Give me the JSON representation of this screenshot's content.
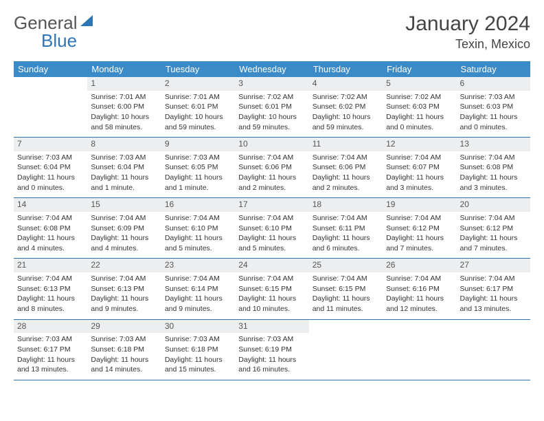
{
  "logo": {
    "text1": "General",
    "text2": "Blue"
  },
  "title": "January 2024",
  "subtitle": "Texin, Mexico",
  "colors": {
    "header_bg": "#3b8bc8",
    "week_border": "#2e75b6",
    "datebar_bg": "#eceef0"
  },
  "daynames": [
    "Sunday",
    "Monday",
    "Tuesday",
    "Wednesday",
    "Thursday",
    "Friday",
    "Saturday"
  ],
  "weeks": [
    [
      {
        "date": ""
      },
      {
        "date": "1",
        "sunrise": "Sunrise: 7:01 AM",
        "sunset": "Sunset: 6:00 PM",
        "daylight1": "Daylight: 10 hours",
        "daylight2": "and 58 minutes."
      },
      {
        "date": "2",
        "sunrise": "Sunrise: 7:01 AM",
        "sunset": "Sunset: 6:01 PM",
        "daylight1": "Daylight: 10 hours",
        "daylight2": "and 59 minutes."
      },
      {
        "date": "3",
        "sunrise": "Sunrise: 7:02 AM",
        "sunset": "Sunset: 6:01 PM",
        "daylight1": "Daylight: 10 hours",
        "daylight2": "and 59 minutes."
      },
      {
        "date": "4",
        "sunrise": "Sunrise: 7:02 AM",
        "sunset": "Sunset: 6:02 PM",
        "daylight1": "Daylight: 10 hours",
        "daylight2": "and 59 minutes."
      },
      {
        "date": "5",
        "sunrise": "Sunrise: 7:02 AM",
        "sunset": "Sunset: 6:03 PM",
        "daylight1": "Daylight: 11 hours",
        "daylight2": "and 0 minutes."
      },
      {
        "date": "6",
        "sunrise": "Sunrise: 7:03 AM",
        "sunset": "Sunset: 6:03 PM",
        "daylight1": "Daylight: 11 hours",
        "daylight2": "and 0 minutes."
      }
    ],
    [
      {
        "date": "7",
        "sunrise": "Sunrise: 7:03 AM",
        "sunset": "Sunset: 6:04 PM",
        "daylight1": "Daylight: 11 hours",
        "daylight2": "and 0 minutes."
      },
      {
        "date": "8",
        "sunrise": "Sunrise: 7:03 AM",
        "sunset": "Sunset: 6:04 PM",
        "daylight1": "Daylight: 11 hours",
        "daylight2": "and 1 minute."
      },
      {
        "date": "9",
        "sunrise": "Sunrise: 7:03 AM",
        "sunset": "Sunset: 6:05 PM",
        "daylight1": "Daylight: 11 hours",
        "daylight2": "and 1 minute."
      },
      {
        "date": "10",
        "sunrise": "Sunrise: 7:04 AM",
        "sunset": "Sunset: 6:06 PM",
        "daylight1": "Daylight: 11 hours",
        "daylight2": "and 2 minutes."
      },
      {
        "date": "11",
        "sunrise": "Sunrise: 7:04 AM",
        "sunset": "Sunset: 6:06 PM",
        "daylight1": "Daylight: 11 hours",
        "daylight2": "and 2 minutes."
      },
      {
        "date": "12",
        "sunrise": "Sunrise: 7:04 AM",
        "sunset": "Sunset: 6:07 PM",
        "daylight1": "Daylight: 11 hours",
        "daylight2": "and 3 minutes."
      },
      {
        "date": "13",
        "sunrise": "Sunrise: 7:04 AM",
        "sunset": "Sunset: 6:08 PM",
        "daylight1": "Daylight: 11 hours",
        "daylight2": "and 3 minutes."
      }
    ],
    [
      {
        "date": "14",
        "sunrise": "Sunrise: 7:04 AM",
        "sunset": "Sunset: 6:08 PM",
        "daylight1": "Daylight: 11 hours",
        "daylight2": "and 4 minutes."
      },
      {
        "date": "15",
        "sunrise": "Sunrise: 7:04 AM",
        "sunset": "Sunset: 6:09 PM",
        "daylight1": "Daylight: 11 hours",
        "daylight2": "and 4 minutes."
      },
      {
        "date": "16",
        "sunrise": "Sunrise: 7:04 AM",
        "sunset": "Sunset: 6:10 PM",
        "daylight1": "Daylight: 11 hours",
        "daylight2": "and 5 minutes."
      },
      {
        "date": "17",
        "sunrise": "Sunrise: 7:04 AM",
        "sunset": "Sunset: 6:10 PM",
        "daylight1": "Daylight: 11 hours",
        "daylight2": "and 5 minutes."
      },
      {
        "date": "18",
        "sunrise": "Sunrise: 7:04 AM",
        "sunset": "Sunset: 6:11 PM",
        "daylight1": "Daylight: 11 hours",
        "daylight2": "and 6 minutes."
      },
      {
        "date": "19",
        "sunrise": "Sunrise: 7:04 AM",
        "sunset": "Sunset: 6:12 PM",
        "daylight1": "Daylight: 11 hours",
        "daylight2": "and 7 minutes."
      },
      {
        "date": "20",
        "sunrise": "Sunrise: 7:04 AM",
        "sunset": "Sunset: 6:12 PM",
        "daylight1": "Daylight: 11 hours",
        "daylight2": "and 7 minutes."
      }
    ],
    [
      {
        "date": "21",
        "sunrise": "Sunrise: 7:04 AM",
        "sunset": "Sunset: 6:13 PM",
        "daylight1": "Daylight: 11 hours",
        "daylight2": "and 8 minutes."
      },
      {
        "date": "22",
        "sunrise": "Sunrise: 7:04 AM",
        "sunset": "Sunset: 6:13 PM",
        "daylight1": "Daylight: 11 hours",
        "daylight2": "and 9 minutes."
      },
      {
        "date": "23",
        "sunrise": "Sunrise: 7:04 AM",
        "sunset": "Sunset: 6:14 PM",
        "daylight1": "Daylight: 11 hours",
        "daylight2": "and 9 minutes."
      },
      {
        "date": "24",
        "sunrise": "Sunrise: 7:04 AM",
        "sunset": "Sunset: 6:15 PM",
        "daylight1": "Daylight: 11 hours",
        "daylight2": "and 10 minutes."
      },
      {
        "date": "25",
        "sunrise": "Sunrise: 7:04 AM",
        "sunset": "Sunset: 6:15 PM",
        "daylight1": "Daylight: 11 hours",
        "daylight2": "and 11 minutes."
      },
      {
        "date": "26",
        "sunrise": "Sunrise: 7:04 AM",
        "sunset": "Sunset: 6:16 PM",
        "daylight1": "Daylight: 11 hours",
        "daylight2": "and 12 minutes."
      },
      {
        "date": "27",
        "sunrise": "Sunrise: 7:04 AM",
        "sunset": "Sunset: 6:17 PM",
        "daylight1": "Daylight: 11 hours",
        "daylight2": "and 13 minutes."
      }
    ],
    [
      {
        "date": "28",
        "sunrise": "Sunrise: 7:03 AM",
        "sunset": "Sunset: 6:17 PM",
        "daylight1": "Daylight: 11 hours",
        "daylight2": "and 13 minutes."
      },
      {
        "date": "29",
        "sunrise": "Sunrise: 7:03 AM",
        "sunset": "Sunset: 6:18 PM",
        "daylight1": "Daylight: 11 hours",
        "daylight2": "and 14 minutes."
      },
      {
        "date": "30",
        "sunrise": "Sunrise: 7:03 AM",
        "sunset": "Sunset: 6:18 PM",
        "daylight1": "Daylight: 11 hours",
        "daylight2": "and 15 minutes."
      },
      {
        "date": "31",
        "sunrise": "Sunrise: 7:03 AM",
        "sunset": "Sunset: 6:19 PM",
        "daylight1": "Daylight: 11 hours",
        "daylight2": "and 16 minutes."
      },
      {
        "date": ""
      },
      {
        "date": ""
      },
      {
        "date": ""
      }
    ]
  ]
}
